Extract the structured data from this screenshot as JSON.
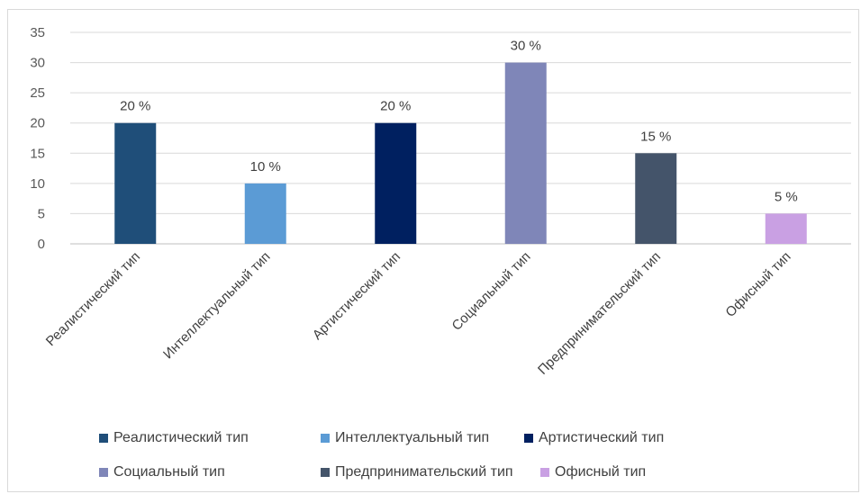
{
  "chart_data": {
    "type": "bar",
    "categories": [
      "Реалистический тип",
      "Интеллектуальный тип",
      "Артистический тип",
      "Социальный тип",
      "Предпринимательский тип",
      "Офисный тип"
    ],
    "values": [
      20,
      10,
      20,
      30,
      15,
      5
    ],
    "data_labels": [
      "20 %",
      "10 %",
      "20 %",
      "30 %",
      "15 %",
      "5 %"
    ],
    "colors": [
      "#1f4e79",
      "#5b9bd5",
      "#002060",
      "#7f86b8",
      "#44546a",
      "#c9a0e3"
    ],
    "ylim": [
      0,
      35
    ],
    "yticks": [
      "0",
      "5",
      "10",
      "15",
      "20",
      "25",
      "30",
      "35"
    ],
    "grid": true,
    "legend": "bottom",
    "legend_entries": [
      "Реалистический тип",
      "Интеллектуальный тип",
      "Артистический тип",
      "Социальный тип",
      "Предпринимательский тип",
      "Офисный тип"
    ]
  }
}
